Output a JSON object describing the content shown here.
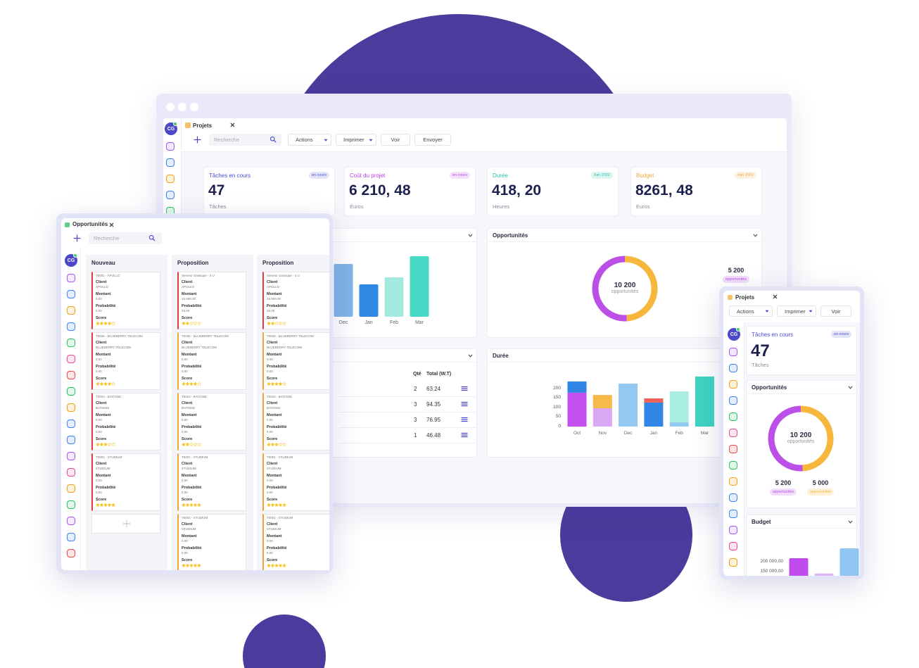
{
  "desktop": {
    "tab": "Projets",
    "avatar": "CG",
    "toolbar": {
      "search": "Recherche",
      "buttons": [
        "Actions",
        "Imprimer",
        "Voir",
        "Envoyer"
      ]
    },
    "kpis": [
      {
        "title": "Tâches en cours",
        "badge": "en cours",
        "value": "47",
        "unit": "Tâches",
        "color": "#4a4ad8"
      },
      {
        "title": "Coût du projet",
        "badge": "en cours",
        "value": "6 210, 48",
        "unit": "Euros",
        "color": "#b63fe0"
      },
      {
        "title": "Durée",
        "badge": "Juin 2022",
        "value": "418, 20",
        "unit": "Heures",
        "color": "#2bbfa8"
      },
      {
        "title": "Budget",
        "badge": "Juin 2022",
        "value": "8261, 48",
        "unit": "Euros",
        "color": "#f4a93a"
      }
    ],
    "bar_chart": {
      "type": "bar",
      "categories": [
        "Dec",
        "Jan",
        "Feb",
        "Mar"
      ],
      "values": [
        75,
        46,
        56,
        86
      ],
      "colors": [
        "#7fb5e5",
        "#2f88e4",
        "#a3ebe0",
        "#45d9c6"
      ],
      "ylim": [
        0,
        100
      ]
    },
    "opportunities": {
      "title": "Opportunités",
      "chart": {
        "type": "donut",
        "center_value": "10 200",
        "center_label": "opportunités",
        "slices": [
          {
            "value": 5200,
            "label": "5 200",
            "badge": "opportunités",
            "color": "#bb4fe8"
          },
          {
            "value": 5000,
            "color": "#f6b73c"
          }
        ]
      }
    },
    "table": {
      "columns": [
        "Qté",
        "Total (W.T)"
      ],
      "rows": [
        [
          2,
          63.24
        ],
        [
          3,
          94.35
        ],
        [
          3,
          76.95
        ],
        [
          1,
          46.48
        ]
      ]
    },
    "duration": {
      "title": "Durée",
      "chart": {
        "type": "stacked-bar",
        "categories": [
          "Oct",
          "Nov",
          "Dec",
          "Jan",
          "Feb",
          "Mar"
        ],
        "ylim": [
          0,
          270
        ],
        "yticks": [
          0,
          50,
          100,
          150,
          200
        ],
        "series": [
          {
            "values": [
              178,
              96,
              226,
              126,
              22,
              263
            ],
            "colors": [
              "#c34ff0",
              "#dba8f5",
              "#93c8f3",
              "#2f86e4",
              "#93c8f3",
              "#3fd4c0"
            ]
          },
          {
            "values": [
              59,
              70,
              null,
              22,
              163,
              null
            ],
            "colors": [
              "#2f86e4",
              "#f6b94a",
              null,
              "#f0605a",
              "#aaeee3",
              null
            ]
          }
        ]
      }
    }
  },
  "tablet": {
    "tab": "Opportunités",
    "avatar": "CG",
    "search": "Recherche",
    "field_labels": {
      "client": "Client",
      "amount": "Montant",
      "probability": "Probabilité",
      "score": "Score"
    },
    "columns": [
      {
        "title": "Nouveau",
        "cards": [
          {
            "ref": "T0001 - APOLLO",
            "client": "APOLLO",
            "amount": "0.00",
            "probability": "0.00",
            "score": 4
          },
          {
            "ref": "T0036 - BLUEBERRY TELECOM",
            "client": "BLUEBERRY TELECOM",
            "amount": "0.00",
            "probability": "0.00",
            "score": 4
          },
          {
            "ref": "T0024 - BATIGNE",
            "client": "BATIGNE",
            "amount": "0.00",
            "probability": "0.00",
            "score": 3
          },
          {
            "ref": "T0001 - STUDIUM",
            "client": "STUDIUM",
            "amount": "0.00",
            "probability": "0.00",
            "score": 5
          }
        ]
      },
      {
        "title": "Proposition",
        "cards": [
          {
            "ref": "Serveur classique - 4 U",
            "client": "APOLLO",
            "amount": "15 000.00",
            "probability": "25.00",
            "score": 2
          },
          {
            "ref": "T0036 - BLUEBERRY TELECOM",
            "client": "BLUEBERRY TELECOM",
            "amount": "0.00",
            "probability": "0.00",
            "score": 4
          },
          {
            "ref": "T0024 - BATIGNE",
            "client": "BATIGNE",
            "amount": "0.00",
            "probability": "0.00",
            "score": 2
          },
          {
            "ref": "T0001 - STUDIUM",
            "client": "STUDIUM",
            "amount": "0.00",
            "probability": "0.00",
            "score": 5
          },
          {
            "ref": "T0001 - STUDIUM",
            "client": "STUDIUM",
            "amount": "0.00",
            "probability": "0.00",
            "score": 5
          }
        ]
      },
      {
        "title": "Proposition",
        "cards": [
          {
            "ref": "Serveur classique - 4 U",
            "client": "APOLLO",
            "amount": "15 000.00",
            "probability": "25.00",
            "score": 2
          },
          {
            "ref": "T0036 - BLUEBERRY TELECOM",
            "client": "BLUEBERRY TELECOM",
            "amount": "0.00",
            "probability": "0.00",
            "score": 4
          },
          {
            "ref": "T0024 - BATIGNE",
            "client": "BATIGNE",
            "amount": "0.00",
            "probability": "0.00",
            "score": 3
          },
          {
            "ref": "T0001 - STUDIUM",
            "client": "STUDIUM",
            "amount": "0.00",
            "probability": "0.00",
            "score": 5
          },
          {
            "ref": "T0001 - STUDIUM",
            "client": "STUDIUM",
            "amount": "0.00",
            "probability": "0.00",
            "score": 5
          }
        ]
      }
    ]
  },
  "phone": {
    "tab": "Projets",
    "avatar": "CG",
    "buttons": [
      "Actions",
      "Imprimer",
      "Voir"
    ],
    "kpi": {
      "title": "Tâches en cours",
      "badge": "en cours",
      "value": "47",
      "unit": "Tâches",
      "color": "#4a4ad8"
    },
    "opportunities": {
      "title": "Opportunités",
      "chart": {
        "type": "donut",
        "center_value": "10 200",
        "center_label": "opportunités",
        "slices": [
          {
            "value": 5200,
            "label": "5 200",
            "badge": "opportunités",
            "color": "#bb4fe8"
          },
          {
            "value": 5000,
            "label": "5 000",
            "badge": "opportunités",
            "color": "#f6b73c"
          }
        ]
      }
    },
    "budget": {
      "title": "Budget",
      "chart": {
        "type": "bar",
        "values": [
          218000,
          140000,
          268000
        ],
        "colors": [
          "#c04cf0",
          "#dcb6f5",
          "#92c6f2"
        ],
        "ylim": [
          0,
          300000
        ],
        "yticks": [
          {
            "value": 200000,
            "label": "200 000,00"
          },
          {
            "value": 150000,
            "label": "150 000,00"
          }
        ]
      }
    }
  }
}
